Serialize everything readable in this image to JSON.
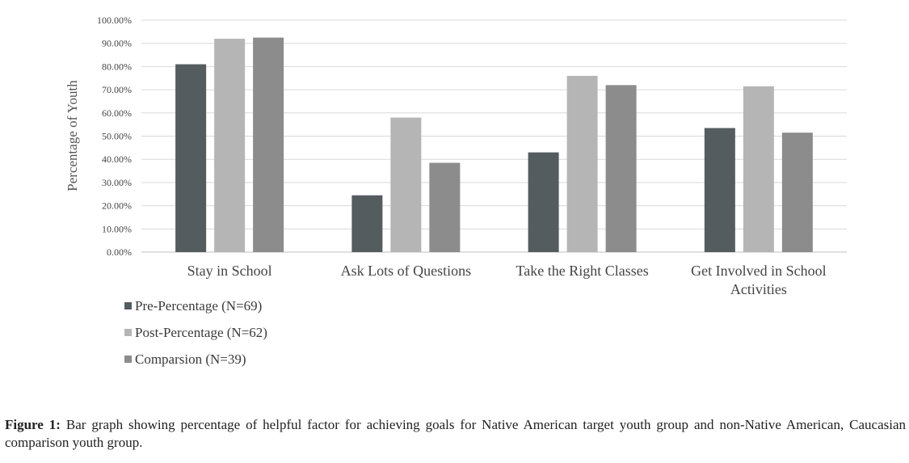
{
  "chart_data": {
    "type": "bar",
    "categories": [
      "Stay in School",
      "Ask Lots of Questions",
      "Take the Right Classes",
      "Get Involved in School Activities"
    ],
    "series": [
      {
        "name": "Pre-Percentage (N=69)",
        "values": [
          81,
          24.5,
          43,
          53.5
        ],
        "color": "#555c60"
      },
      {
        "name": "Post-Percentage (N=62)",
        "values": [
          92,
          58,
          76,
          71.5
        ],
        "color": "#b5b5b5"
      },
      {
        "name": "Comparsion (N=39)",
        "values": [
          92.5,
          38.5,
          72,
          51.5
        ],
        "color": "#8c8c8c"
      }
    ],
    "ylabel": "Percentage of Youth",
    "ylim": [
      0,
      100
    ],
    "yticks": [
      "0.00%",
      "10.00%",
      "20.00%",
      "30.00%",
      "40.00%",
      "50.00%",
      "60.00%",
      "70.00%",
      "80.00%",
      "90.00%",
      "100.00%"
    ],
    "grid": true,
    "legend_position": "bottom-left"
  },
  "caption": {
    "label": "Figure 1:",
    "text": " Bar graph showing percentage of helpful factor for achieving goals for Native American target youth group and non-Native American, Caucasian comparison youth group."
  }
}
